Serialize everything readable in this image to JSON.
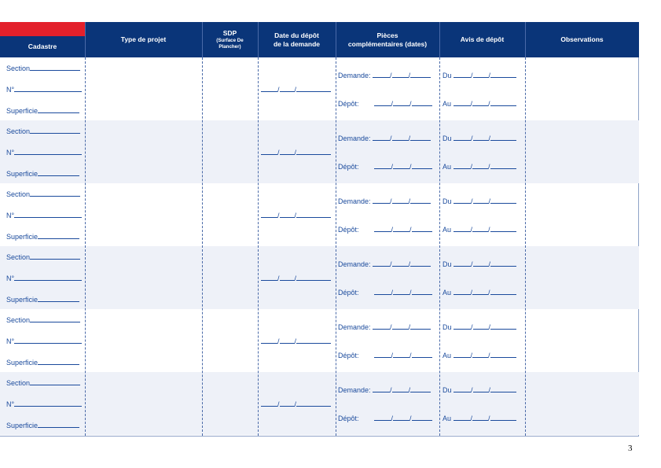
{
  "header": {
    "cadastre": "Cadastre",
    "type_projet": "Type de projet",
    "sdp": "SDP",
    "sdp_sub1": "(Surface De",
    "sdp_sub2": "Plancher)",
    "date_depot1": "Date du dépôt",
    "date_depot2": "de la demande",
    "pieces1": "Pièces",
    "pieces2": "complémentaires (dates)",
    "avis": "Avis de dépôt",
    "observations": "Observations"
  },
  "row_labels": {
    "section": "Section",
    "numero": "N°",
    "superficie": "Superficie",
    "demande": "Demande:",
    "depot": "Dépôt:",
    "du": "Du",
    "au": "Au"
  },
  "row_count": 6,
  "page_number": "3",
  "colors": {
    "header_bg": "#0a3579",
    "accent_red": "#e3202b",
    "text_blue": "#1a4a9c",
    "alt_row": "#eef1f8"
  }
}
